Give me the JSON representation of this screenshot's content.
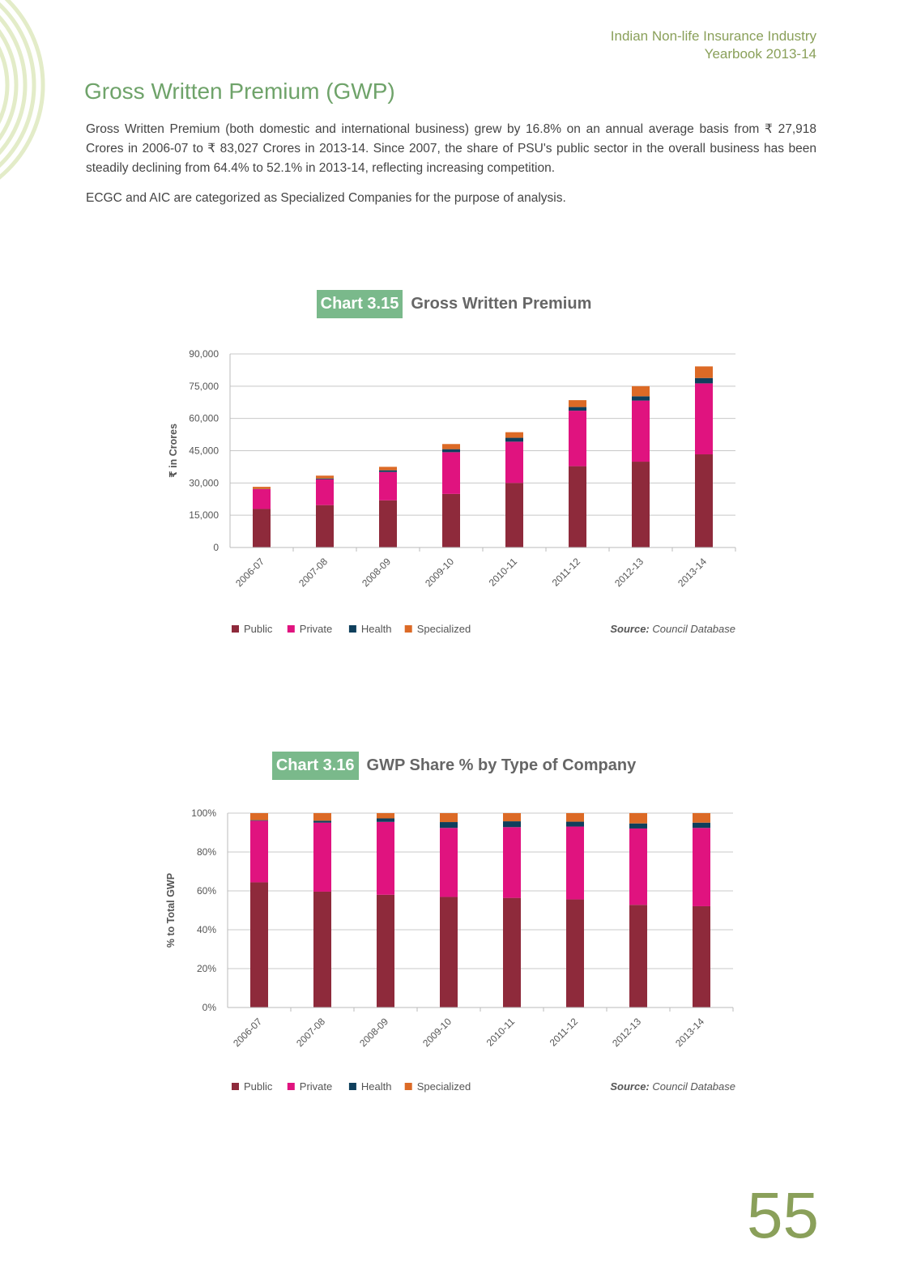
{
  "header": {
    "line1": "Indian Non-life Insurance Industry",
    "line2": "Yearbook 2013-14"
  },
  "section_title": "Gross Written Premium (GWP)",
  "paragraphs": [
    "Gross Written Premium (both domestic and international business) grew by 16.8% on an annual average basis from ₹ 27,918 Crores in 2006-07 to ₹ 83,027 Crores in 2013-14. Since 2007, the share of PSU's public sector in the overall business has been steadily declining from 64.4% to 52.1% in 2013-14, reflecting increasing competition.",
    "ECGC and AIC are categorized as Specialized Companies for the purpose of analysis."
  ],
  "page_number": "55",
  "colors": {
    "Public": "#8e2a3b",
    "Private": "#e0137f",
    "Health": "#0f3f5c",
    "Specialized": "#dc6a26",
    "accent": "#7ab98b"
  },
  "chart_data": [
    {
      "type": "bar",
      "stacked": true,
      "tag": "Chart 3.15",
      "title": "Gross Written Premium",
      "ylabel": "₹ in Crores",
      "xlabel": "",
      "ylim": [
        0,
        90000
      ],
      "yticks": [
        0,
        15000,
        30000,
        45000,
        60000,
        75000,
        90000
      ],
      "ytick_labels": [
        "0",
        "15,000",
        "30,000",
        "45,000",
        "60,000",
        "75,000",
        "90,000"
      ],
      "categories": [
        "2006-07",
        "2007-08",
        "2008-09",
        "2009-10",
        "2010-11",
        "2011-12",
        "2012-13",
        "2013-14"
      ],
      "series": [
        {
          "name": "Public",
          "values": [
            17900,
            19700,
            21900,
            24900,
            30000,
            37800,
            39900,
            43300
          ]
        },
        {
          "name": "Private",
          "values": [
            9200,
            12000,
            13200,
            19400,
            19200,
            25800,
            28400,
            33000
          ]
        },
        {
          "name": "Health",
          "values": [
            100,
            400,
            800,
            1400,
            1800,
            1700,
            2000,
            2500
          ]
        },
        {
          "name": "Specialized",
          "values": [
            1000,
            1300,
            1600,
            2400,
            2600,
            3200,
            4700,
            5400
          ]
        }
      ],
      "grid": true,
      "legend": "bottom-left",
      "source_label": "Source:",
      "source_text": "Council Database"
    },
    {
      "type": "bar",
      "stacked": true,
      "tag": "Chart 3.16",
      "title": "GWP Share % by Type of Company",
      "ylabel": "% to Total GWP",
      "xlabel": "",
      "ylim": [
        0,
        100
      ],
      "yticks": [
        0,
        20,
        40,
        60,
        80,
        100
      ],
      "ytick_labels": [
        "0%",
        "20%",
        "40%",
        "60%",
        "80%",
        "100%"
      ],
      "categories": [
        "2006-07",
        "2007-08",
        "2008-09",
        "2009-10",
        "2010-11",
        "2011-12",
        "2012-13",
        "2013-14"
      ],
      "series": [
        {
          "name": "Public",
          "values": [
            64.4,
            59.6,
            58.0,
            56.9,
            56.4,
            55.6,
            52.8,
            52.1
          ]
        },
        {
          "name": "Private",
          "values": [
            31.7,
            35.5,
            37.5,
            35.5,
            36.4,
            37.5,
            39.3,
            40.3
          ]
        },
        {
          "name": "Health",
          "values": [
            0.3,
            1.0,
            1.8,
            3.0,
            3.0,
            2.5,
            2.6,
            2.7
          ]
        },
        {
          "name": "Specialized",
          "values": [
            3.6,
            3.9,
            2.7,
            4.6,
            4.2,
            4.4,
            5.3,
            4.9
          ]
        }
      ],
      "grid": true,
      "legend": "bottom-left",
      "source_label": "Source:",
      "source_text": "Council Database"
    }
  ]
}
